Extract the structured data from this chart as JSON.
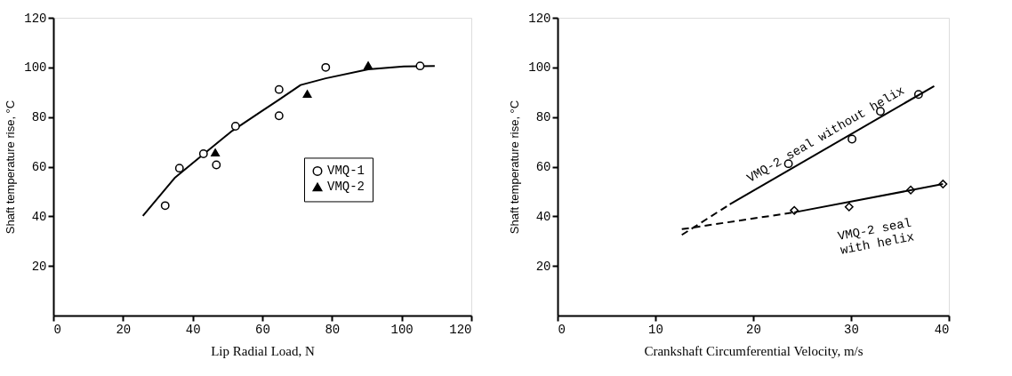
{
  "chart_data": [
    {
      "type": "scatter",
      "xlabel": "Lip Radial Load, N",
      "ylabel": "Shaft temperature rise, °C",
      "xlim": [
        0,
        120
      ],
      "ylim": [
        0,
        120
      ],
      "xticks": [
        0,
        20,
        40,
        60,
        80,
        100,
        120
      ],
      "yticks": [
        20,
        40,
        60,
        80,
        100,
        120
      ],
      "grid": false,
      "legend": "right",
      "series": [
        {
          "name": "VMQ-1",
          "marker": "circle",
          "color": "#000000",
          "x": [
            32.1,
            36.2,
            43.1,
            46.8,
            52.3,
            64.8,
            64.8,
            78.2,
            105.3
          ],
          "values": [
            44.3,
            59.4,
            65.2,
            60.7,
            76.3,
            91.1,
            80.5,
            100,
            100.6
          ]
        },
        {
          "name": "VMQ-2",
          "marker": "triangle",
          "color": "#000000",
          "x": [
            46.5,
            72.9,
            90.4
          ],
          "values": [
            65.7,
            89.3,
            100.8
          ]
        },
        {
          "type": "line",
          "line_style": "solid",
          "color": "#000000",
          "x": [
            25.7,
            34.8,
            43.1,
            51.3,
            59.5,
            64.8,
            71,
            78.2,
            90.4,
            100.6,
            109.5
          ],
          "values": [
            40.2,
            55.4,
            65,
            74.4,
            82.1,
            87,
            92.9,
            95.6,
            99.2,
            100.4,
            100.6
          ]
        }
      ]
    },
    {
      "type": "scatter",
      "xlabel": "Crankshaft Circumferential Velocity, m/s",
      "ylabel": "Shaft temperature rise, °C",
      "xlim": [
        0,
        40
      ],
      "ylim": [
        0,
        120
      ],
      "xticks": [
        0,
        10,
        20,
        30,
        40
      ],
      "yticks": [
        20,
        40,
        60,
        80,
        100,
        120
      ],
      "grid": false,
      "series": [
        {
          "marker": "circle",
          "color": "#000000",
          "x": [
            23.6,
            30.1,
            33.0,
            36.9
          ],
          "values": [
            61.2,
            71.1,
            82.3,
            89.1
          ]
        },
        {
          "marker": "diamond",
          "color": "#000000",
          "x": [
            24.2,
            29.8,
            36.1,
            39.4
          ],
          "values": [
            42.4,
            43.8,
            50.6,
            53.0
          ]
        },
        {
          "type": "line",
          "line_style": "dashed",
          "color": "#000000",
          "x": [
            12.7,
            17.6
          ],
          "values": [
            32.5,
            44.8
          ]
        },
        {
          "name": "VMQ-2 seal without helix",
          "type": "line",
          "line_style": "solid",
          "color": "#000000",
          "x": [
            17.6,
            38.5
          ],
          "values": [
            44.8,
            92.5
          ]
        },
        {
          "type": "line",
          "line_style": "dashed",
          "color": "#000000",
          "x": [
            12.7,
            24.2
          ],
          "values": [
            34.8,
            41.6
          ]
        },
        {
          "name": "VMQ-2 seal\nwith helix",
          "type": "line",
          "line_style": "solid",
          "color": "#000000",
          "x": [
            24.2,
            39.4
          ],
          "values": [
            41.6,
            53.0
          ]
        }
      ]
    }
  ]
}
